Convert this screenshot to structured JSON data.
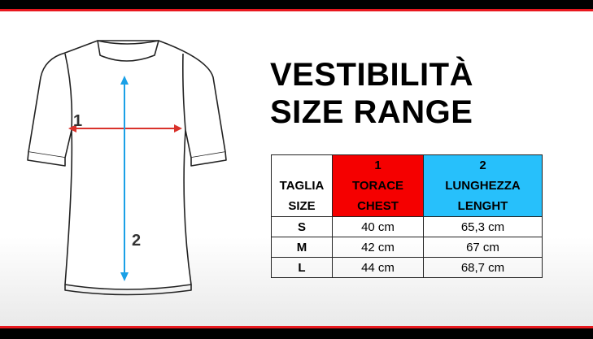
{
  "title_line1": "VESTIBILITÀ",
  "title_line2": "SIZE RANGE",
  "colors": {
    "chest": "#f50000",
    "length": "#27c0fb",
    "bar": "#000000",
    "accent": "#e8181e"
  },
  "diagram": {
    "label_chest": "1",
    "label_length": "2"
  },
  "table": {
    "size_header": [
      "TAGLIA",
      "SIZE"
    ],
    "chest_header": {
      "num": "1",
      "it": "TORACE",
      "en": "CHEST"
    },
    "length_header": {
      "num": "2",
      "it": "LUNGHEZZA",
      "en": "LENGHT"
    },
    "rows": [
      {
        "size": "S",
        "chest": "40 cm",
        "length": "65,3 cm"
      },
      {
        "size": "M",
        "chest": "42 cm",
        "length": "67 cm"
      },
      {
        "size": "L",
        "chest": "44 cm",
        "length": "68,7 cm"
      }
    ]
  }
}
